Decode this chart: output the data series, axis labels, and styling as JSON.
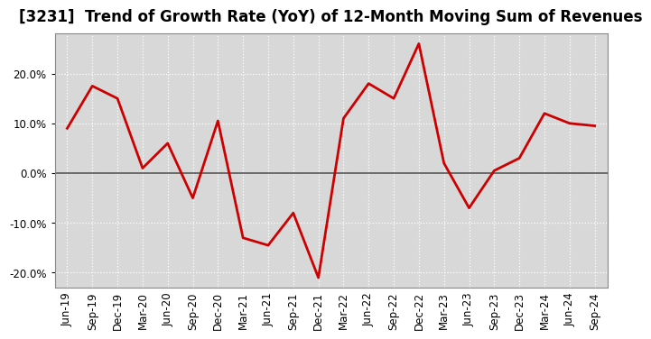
{
  "title": "[3231]  Trend of Growth Rate (YoY) of 12-Month Moving Sum of Revenues",
  "x_labels": [
    "Jun-19",
    "Sep-19",
    "Dec-19",
    "Mar-20",
    "Jun-20",
    "Sep-20",
    "Dec-20",
    "Mar-21",
    "Jun-21",
    "Sep-21",
    "Dec-21",
    "Mar-22",
    "Jun-22",
    "Sep-22",
    "Dec-22",
    "Mar-23",
    "Jun-23",
    "Sep-23",
    "Dec-23",
    "Mar-24",
    "Jun-24",
    "Sep-24"
  ],
  "y_values": [
    9.0,
    17.5,
    15.0,
    1.0,
    6.0,
    -5.0,
    10.5,
    -13.0,
    -14.5,
    -8.0,
    -21.0,
    11.0,
    18.0,
    15.0,
    26.0,
    2.0,
    -7.0,
    0.5,
    3.0,
    12.0,
    10.0,
    9.5
  ],
  "line_color": "#cc0000",
  "line_width": 2.0,
  "ylim": [
    -23,
    28
  ],
  "yticks": [
    -20,
    -10,
    0,
    10,
    20
  ],
  "background_color": "#ffffff",
  "plot_bg_color": "#d8d8d8",
  "grid_color": "#ffffff",
  "zero_line_color": "#555555",
  "title_fontsize": 12,
  "tick_fontsize": 8.5
}
